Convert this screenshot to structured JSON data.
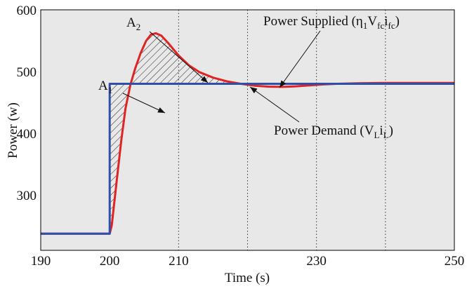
{
  "chart_data": {
    "type": "line",
    "title": "",
    "xlabel": "Time (s)",
    "ylabel": "Power (w)",
    "xlim": [
      190,
      250
    ],
    "ylim": [
      210,
      600
    ],
    "x_ticks": [
      190,
      200,
      210,
      230,
      250
    ],
    "y_ticks": [
      300,
      400,
      500,
      600
    ],
    "vertical_dotted_lines": [
      210,
      220,
      230,
      240
    ],
    "grid": false,
    "background_color": "#e8e8e8",
    "series": [
      {
        "key": "demand",
        "color": "#2f4fa8",
        "points": [
          [
            190,
            237
          ],
          [
            200,
            237
          ],
          [
            200,
            480
          ],
          [
            250,
            480
          ]
        ]
      },
      {
        "key": "supplied",
        "color": "#e02424",
        "points": [
          [
            190,
            237
          ],
          [
            200,
            237
          ],
          [
            200.3,
            250
          ],
          [
            200.7,
            290
          ],
          [
            201.2,
            340
          ],
          [
            201.7,
            390
          ],
          [
            202.3,
            440
          ],
          [
            203,
            478
          ],
          [
            203.7,
            505
          ],
          [
            204.5,
            530
          ],
          [
            205.3,
            550
          ],
          [
            206,
            560
          ],
          [
            206.7,
            562
          ],
          [
            207.5,
            558
          ],
          [
            208.5,
            546
          ],
          [
            210,
            526
          ],
          [
            211.5,
            510
          ],
          [
            213,
            499
          ],
          [
            215,
            490
          ],
          [
            217,
            484
          ],
          [
            219,
            480
          ],
          [
            221,
            477
          ],
          [
            223,
            475.5
          ],
          [
            225,
            475
          ],
          [
            227,
            476
          ],
          [
            229,
            477.5
          ],
          [
            231,
            479
          ],
          [
            233,
            480
          ],
          [
            236,
            481
          ],
          [
            240,
            481.5
          ],
          [
            245,
            481.5
          ],
          [
            250,
            481.5
          ]
        ]
      }
    ],
    "annotations": [
      {
        "key": "a1",
        "base": "A",
        "sub": "1",
        "rest_main": "",
        "rest_sub": ""
      },
      {
        "key": "a2",
        "base": "A",
        "sub": "2",
        "rest_main": "",
        "rest_sub": ""
      },
      {
        "key": "supplied",
        "base": "Power Supplied (η",
        "sub": "1",
        "rest": "V",
        "sub2": "fc",
        "rest2": "i",
        "sub3": "fc",
        "rest3": ")"
      },
      {
        "key": "demand",
        "base": "Power Demand (V",
        "sub": "L",
        "rest": "i",
        "sub2": "L",
        "rest2": ")"
      }
    ],
    "shaded_regions": [
      "A1",
      "A2"
    ]
  }
}
